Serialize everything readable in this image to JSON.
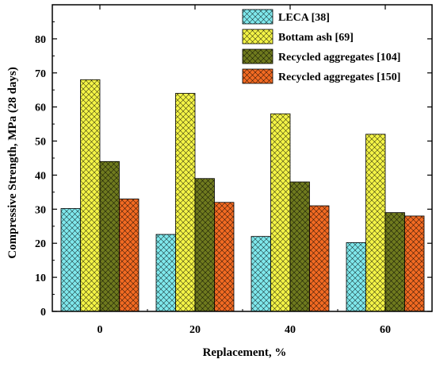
{
  "chart_data": {
    "type": "bar",
    "xlabel": "Replacement, %",
    "ylabel": "Compressive Strength, MPa (28 days)",
    "categories": [
      "0",
      "20",
      "40",
      "60"
    ],
    "ylim": [
      0,
      90
    ],
    "yticks": [
      0,
      10,
      20,
      30,
      40,
      50,
      60,
      70,
      80
    ],
    "grid": false,
    "legend_position": "top-right",
    "series": [
      {
        "name": "LECA [38]",
        "values": [
          30.2,
          22.6,
          22.0,
          20.2
        ],
        "color": "#7fe8ec",
        "pattern": "crosshatch"
      },
      {
        "name": "Bottam ash [69]",
        "values": [
          68,
          64,
          58,
          52
        ],
        "color": "#f4f446",
        "pattern": "crosshatch"
      },
      {
        "name": "Recycled aggregates [104]",
        "values": [
          44,
          39,
          38,
          29
        ],
        "color": "#6f7a1e",
        "pattern": "crosshatch"
      },
      {
        "name": "Recycled aggregates [150]",
        "values": [
          33,
          32,
          31,
          28
        ],
        "color": "#f26a22",
        "pattern": "crosshatch"
      }
    ]
  }
}
